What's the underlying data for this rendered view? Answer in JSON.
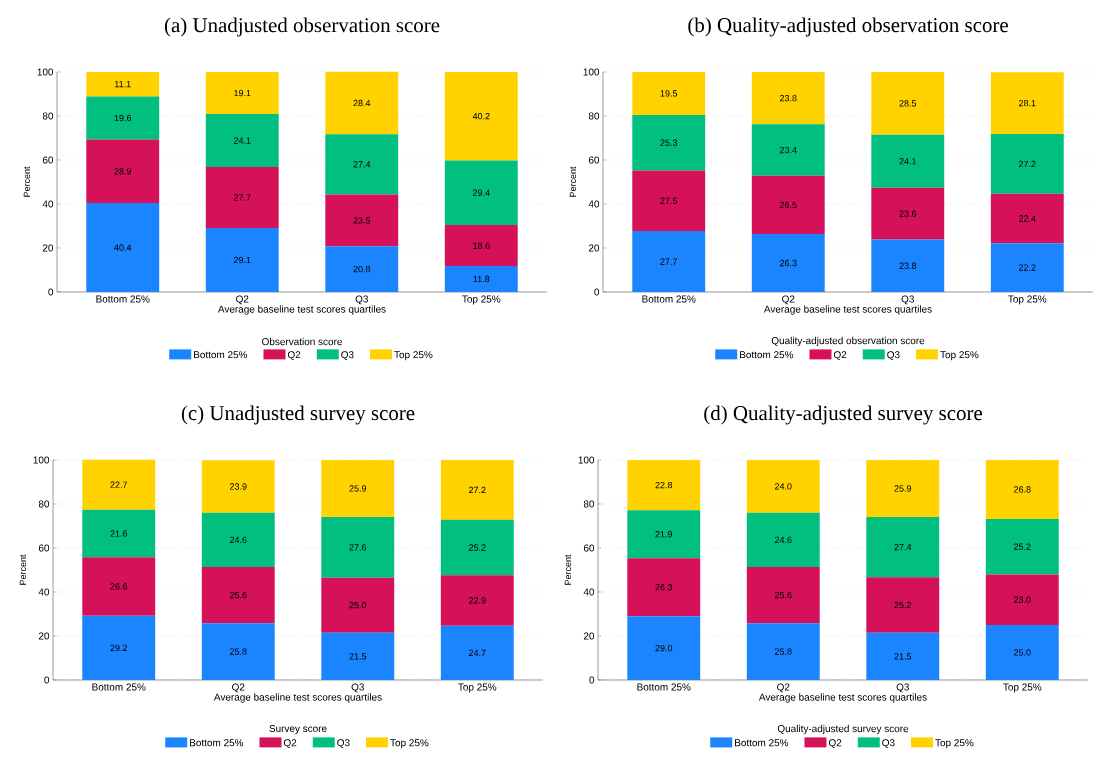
{
  "chart_data": [
    {
      "type": "bar",
      "stacked": true,
      "title": "(a) Unadjusted observation score",
      "xlabel": "Average baseline test scores quartiles",
      "ylabel": "Percent",
      "legend_title": "Observation score",
      "legend": "bottom",
      "grid": "y",
      "categories": [
        "Bottom 25%",
        "Q2",
        "Q3",
        "Top 25%"
      ],
      "ylim": [
        0,
        100
      ],
      "yticks": [
        0,
        20,
        40,
        60,
        80,
        100
      ],
      "series": [
        {
          "name": "Bottom 25%",
          "color": "#1a85ff",
          "values": [
            40.4,
            29.1,
            20.8,
            11.8
          ],
          "value_labels": [
            "40.4",
            "29.1",
            "20.8",
            "11.8"
          ]
        },
        {
          "name": "Q2",
          "color": "#d41159",
          "values": [
            28.9,
            27.7,
            23.5,
            18.6
          ],
          "value_labels": [
            "28.9",
            "27.7",
            "23.5",
            "18.6"
          ]
        },
        {
          "name": "Q3",
          "color": "#00bf7f",
          "values": [
            19.6,
            24.1,
            27.4,
            29.4
          ],
          "value_labels": [
            "19.6",
            "24.1",
            "27.4",
            "29.4"
          ]
        },
        {
          "name": "Top 25%",
          "color": "#ffd200",
          "values": [
            11.1,
            19.1,
            28.4,
            40.2
          ],
          "value_labels": [
            "11.1",
            "19.1",
            "28.4",
            "40.2"
          ]
        }
      ]
    },
    {
      "type": "bar",
      "stacked": true,
      "title": "(b) Quality-adjusted observation score",
      "xlabel": "Average baseline test scores quartiles",
      "ylabel": "Percent",
      "legend_title": "Quality-adjusted observation score",
      "legend": "bottom",
      "grid": "y",
      "categories": [
        "Bottom 25%",
        "Q2",
        "Q3",
        "Top 25%"
      ],
      "ylim": [
        0,
        100
      ],
      "yticks": [
        0,
        20,
        40,
        60,
        80,
        100
      ],
      "series": [
        {
          "name": "Bottom 25%",
          "color": "#1a85ff",
          "values": [
            27.7,
            26.3,
            23.8,
            22.2
          ],
          "value_labels": [
            "27.7",
            "26.3",
            "23.8",
            "22.2"
          ]
        },
        {
          "name": "Q2",
          "color": "#d41159",
          "values": [
            27.5,
            26.5,
            23.6,
            22.4
          ],
          "value_labels": [
            "27.5",
            "26.5",
            "23.6",
            "22.4"
          ]
        },
        {
          "name": "Q3",
          "color": "#00bf7f",
          "values": [
            25.3,
            23.4,
            24.1,
            27.2
          ],
          "value_labels": [
            "25.3",
            "23.4",
            "24.1",
            "27.2"
          ]
        },
        {
          "name": "Top 25%",
          "color": "#ffd200",
          "values": [
            19.5,
            23.8,
            28.5,
            28.1
          ],
          "value_labels": [
            "19.5",
            "23.8",
            "28.5",
            "28.1"
          ]
        }
      ]
    },
    {
      "type": "bar",
      "stacked": true,
      "title": "(c) Unadjusted survey score",
      "xlabel": "Average baseline test scores quartiles",
      "ylabel": "Percent",
      "legend_title": "Survey score",
      "legend": "bottom",
      "grid": "y",
      "categories": [
        "Bottom 25%",
        "Q2",
        "Q3",
        "Top 25%"
      ],
      "ylim": [
        0,
        100
      ],
      "yticks": [
        0,
        20,
        40,
        60,
        80,
        100
      ],
      "series": [
        {
          "name": "Bottom 25%",
          "color": "#1a85ff",
          "values": [
            29.2,
            25.8,
            21.5,
            24.7
          ],
          "value_labels": [
            "29.2",
            "25.8",
            "21.5",
            "24.7"
          ]
        },
        {
          "name": "Q2",
          "color": "#d41159",
          "values": [
            26.6,
            25.6,
            25.0,
            22.9
          ],
          "value_labels": [
            "26.6",
            "25.6",
            "25.0",
            "22.9"
          ]
        },
        {
          "name": "Q3",
          "color": "#00bf7f",
          "values": [
            21.6,
            24.6,
            27.6,
            25.2
          ],
          "value_labels": [
            "21.6",
            "24.6",
            "27.6",
            "25.2"
          ]
        },
        {
          "name": "Top 25%",
          "color": "#ffd200",
          "values": [
            22.7,
            23.9,
            25.9,
            27.2
          ],
          "value_labels": [
            "22.7",
            "23.9",
            "25.9",
            "27.2"
          ]
        }
      ]
    },
    {
      "type": "bar",
      "stacked": true,
      "title": "(d) Quality-adjusted survey score",
      "xlabel": "Average baseline test scores quartiles",
      "ylabel": "Percent",
      "legend_title": "Quality-adjusted survey score",
      "legend": "bottom",
      "grid": "y",
      "categories": [
        "Bottom 25%",
        "Q2",
        "Q3",
        "Top 25%"
      ],
      "ylim": [
        0,
        100
      ],
      "yticks": [
        0,
        20,
        40,
        60,
        80,
        100
      ],
      "series": [
        {
          "name": "Bottom 25%",
          "color": "#1a85ff",
          "values": [
            29.0,
            25.8,
            21.5,
            25.0
          ],
          "value_labels": [
            "29.0",
            "25.8",
            "21.5",
            "25.0"
          ]
        },
        {
          "name": "Q2",
          "color": "#d41159",
          "values": [
            26.3,
            25.6,
            25.2,
            23.0
          ],
          "value_labels": [
            "26.3",
            "25.6",
            "25.2",
            "23.0"
          ]
        },
        {
          "name": "Q3",
          "color": "#00bf7f",
          "values": [
            21.9,
            24.6,
            27.4,
            25.2
          ],
          "value_labels": [
            "21.9",
            "24.6",
            "27.4",
            "25.2"
          ]
        },
        {
          "name": "Top 25%",
          "color": "#ffd200",
          "values": [
            22.8,
            24.0,
            25.9,
            26.8
          ],
          "value_labels": [
            "22.8",
            "24.0",
            "25.9",
            "26.8"
          ]
        }
      ]
    }
  ]
}
